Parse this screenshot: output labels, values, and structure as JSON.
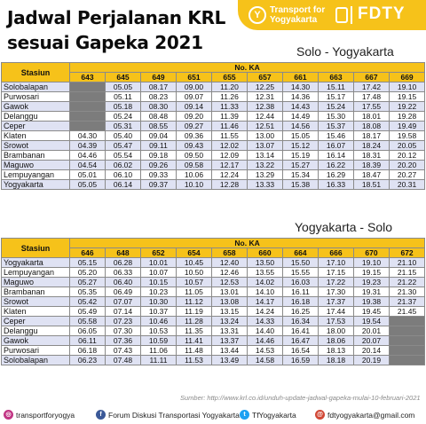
{
  "header": {
    "title_line1": "Jadwal Perjalanan KRL",
    "title_line2": "sesuai Gapeka 2021",
    "brand_small_1": "Transport for",
    "brand_small_2": "Yogyakarta",
    "brand_name": "FDTY",
    "brand_color": "#f6c21a"
  },
  "table1": {
    "route": "Solo - Yogyakarta",
    "col_station": "Stasiun",
    "col_group": "No. KA",
    "trains": [
      "643",
      "645",
      "649",
      "651",
      "655",
      "657",
      "661",
      "663",
      "667",
      "669"
    ],
    "rows": [
      {
        "station": "Solobalapan",
        "times": [
          "",
          "05.05",
          "08.17",
          "09.00",
          "11.20",
          "12.25",
          "14.30",
          "15.11",
          "17.42",
          "19.10"
        ]
      },
      {
        "station": "Purwosari",
        "times": [
          "",
          "05.11",
          "08.23",
          "09.07",
          "11.26",
          "12.31",
          "14.36",
          "15.17",
          "17.48",
          "19.15"
        ]
      },
      {
        "station": "Gawok",
        "times": [
          "",
          "05.18",
          "08.30",
          "09.14",
          "11.33",
          "12.38",
          "14.43",
          "15.24",
          "17.55",
          "19.22"
        ]
      },
      {
        "station": "Delanggu",
        "times": [
          "",
          "05.24",
          "08.48",
          "09.20",
          "11.39",
          "12.44",
          "14.49",
          "15.30",
          "18.01",
          "19.28"
        ]
      },
      {
        "station": "Ceper",
        "times": [
          "",
          "05.31",
          "08.55",
          "09.27",
          "11.46",
          "12.51",
          "14.56",
          "15.37",
          "18.08",
          "19.49"
        ]
      },
      {
        "station": "Klaten",
        "times": [
          "04.30",
          "05.40",
          "09.04",
          "09.36",
          "11.55",
          "13.00",
          "15.05",
          "15.46",
          "18.17",
          "19.58"
        ]
      },
      {
        "station": "Srowot",
        "times": [
          "04.39",
          "05.47",
          "09.11",
          "09.43",
          "12.02",
          "13.07",
          "15.12",
          "16.07",
          "18.24",
          "20.05"
        ]
      },
      {
        "station": "Brambanan",
        "times": [
          "04.46",
          "05.54",
          "09.18",
          "09.50",
          "12.09",
          "13.14",
          "15.19",
          "16.14",
          "18.31",
          "20.12"
        ]
      },
      {
        "station": "Maguwo",
        "times": [
          "04.54",
          "06.02",
          "09.26",
          "09.58",
          "12.17",
          "13.22",
          "15.27",
          "16.22",
          "18.39",
          "20.20"
        ]
      },
      {
        "station": "Lempuyangan",
        "times": [
          "05.01",
          "06.10",
          "09.33",
          "10.06",
          "12.24",
          "13.29",
          "15.34",
          "16.29",
          "18.47",
          "20.27"
        ]
      },
      {
        "station": "Yogyakarta",
        "times": [
          "05.05",
          "06.14",
          "09.37",
          "10.10",
          "12.28",
          "13.33",
          "15.38",
          "16.33",
          "18.51",
          "20.31"
        ]
      }
    ]
  },
  "table2": {
    "route": "Yogyakarta - Solo",
    "col_station": "Stasiun",
    "col_group": "No. KA",
    "trains": [
      "646",
      "648",
      "652",
      "654",
      "658",
      "660",
      "664",
      "666",
      "670",
      "672"
    ],
    "rows": [
      {
        "station": "Yogyakarta",
        "times": [
          "05.15",
          "06.28",
          "10.01",
          "10.45",
          "12.40",
          "13.50",
          "15.50",
          "17.10",
          "19.10",
          "21.10"
        ]
      },
      {
        "station": "Lempuyangan",
        "times": [
          "05.20",
          "06.33",
          "10.07",
          "10.50",
          "12.46",
          "13.55",
          "15.55",
          "17.15",
          "19.15",
          "21.15"
        ]
      },
      {
        "station": "Maguwo",
        "times": [
          "05.27",
          "06.40",
          "10.15",
          "10.57",
          "12.53",
          "14.02",
          "16.03",
          "17.22",
          "19.23",
          "21.22"
        ]
      },
      {
        "station": "Brambanan",
        "times": [
          "05.35",
          "06.49",
          "10.23",
          "11.05",
          "13.01",
          "14.10",
          "16.11",
          "17.30",
          "19.31",
          "21.30"
        ]
      },
      {
        "station": "Srowot",
        "times": [
          "05.42",
          "07.07",
          "10.30",
          "11.12",
          "13.08",
          "14.17",
          "16.18",
          "17.37",
          "19.38",
          "21.37"
        ]
      },
      {
        "station": "Klaten",
        "times": [
          "05.49",
          "07.14",
          "10.37",
          "11.19",
          "13.15",
          "14.24",
          "16.25",
          "17.44",
          "19.45",
          "21.45"
        ]
      },
      {
        "station": "Ceper",
        "times": [
          "05.58",
          "07.23",
          "10.46",
          "11.28",
          "13.24",
          "14.33",
          "16.34",
          "17.53",
          "19.54",
          ""
        ]
      },
      {
        "station": "Delanggu",
        "times": [
          "06.05",
          "07.30",
          "10.53",
          "11.35",
          "13.31",
          "14.40",
          "16.41",
          "18.00",
          "20.01",
          ""
        ]
      },
      {
        "station": "Gawok",
        "times": [
          "06.11",
          "07.36",
          "10.59",
          "11.41",
          "13.37",
          "14.46",
          "16.47",
          "18.06",
          "20.07",
          ""
        ]
      },
      {
        "station": "Purwosari",
        "times": [
          "06.18",
          "07.43",
          "11.06",
          "11.48",
          "13.44",
          "14.53",
          "16.54",
          "18.13",
          "20.14",
          ""
        ]
      },
      {
        "station": "Solobalapan",
        "times": [
          "06.23",
          "07.48",
          "11.11",
          "11.53",
          "13.49",
          "14.58",
          "16.59",
          "18.18",
          "20.19",
          ""
        ]
      }
    ]
  },
  "source": "Sumber: http://www.krl.co.id/unduh-update-jadwal-gapeka-mulai-10-februari-2021",
  "footer": {
    "instagram": "transportforyogya",
    "facebook": "Forum Diskusi Transportasi Yogyakarta",
    "twitter": "TfYogyakarta",
    "email": "fdtyogyakarta@gmail.com"
  }
}
